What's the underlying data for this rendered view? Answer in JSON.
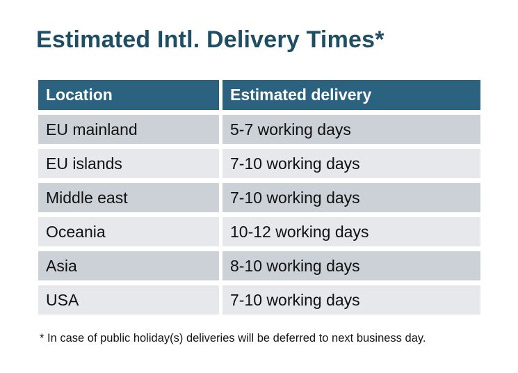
{
  "title": "Estimated Intl. Delivery Times*",
  "table": {
    "columns": [
      {
        "label": "Location"
      },
      {
        "label": "Estimated delivery"
      }
    ],
    "rows": [
      {
        "location": "EU mainland",
        "delivery": "5-7 working days"
      },
      {
        "location": "EU islands",
        "delivery": "7-10 working days"
      },
      {
        "location": "Middle east",
        "delivery": "7-10 working days"
      },
      {
        "location": "Oceania",
        "delivery": "10-12 working days"
      },
      {
        "location": "Asia",
        "delivery": "8-10 working days"
      },
      {
        "location": "USA",
        "delivery": "7-10 working days"
      }
    ]
  },
  "footnote": "* In case of public holiday(s) deliveries will be deferred to next business day.",
  "colors": {
    "title_text": "#1E4E64",
    "header_bg": "#2A6280",
    "header_text": "#FFFFFF",
    "row_stripe_dark": "#CCD1D8",
    "row_stripe_light": "#E6E8EC",
    "body_text": "#111111",
    "background": "#FFFFFF"
  }
}
